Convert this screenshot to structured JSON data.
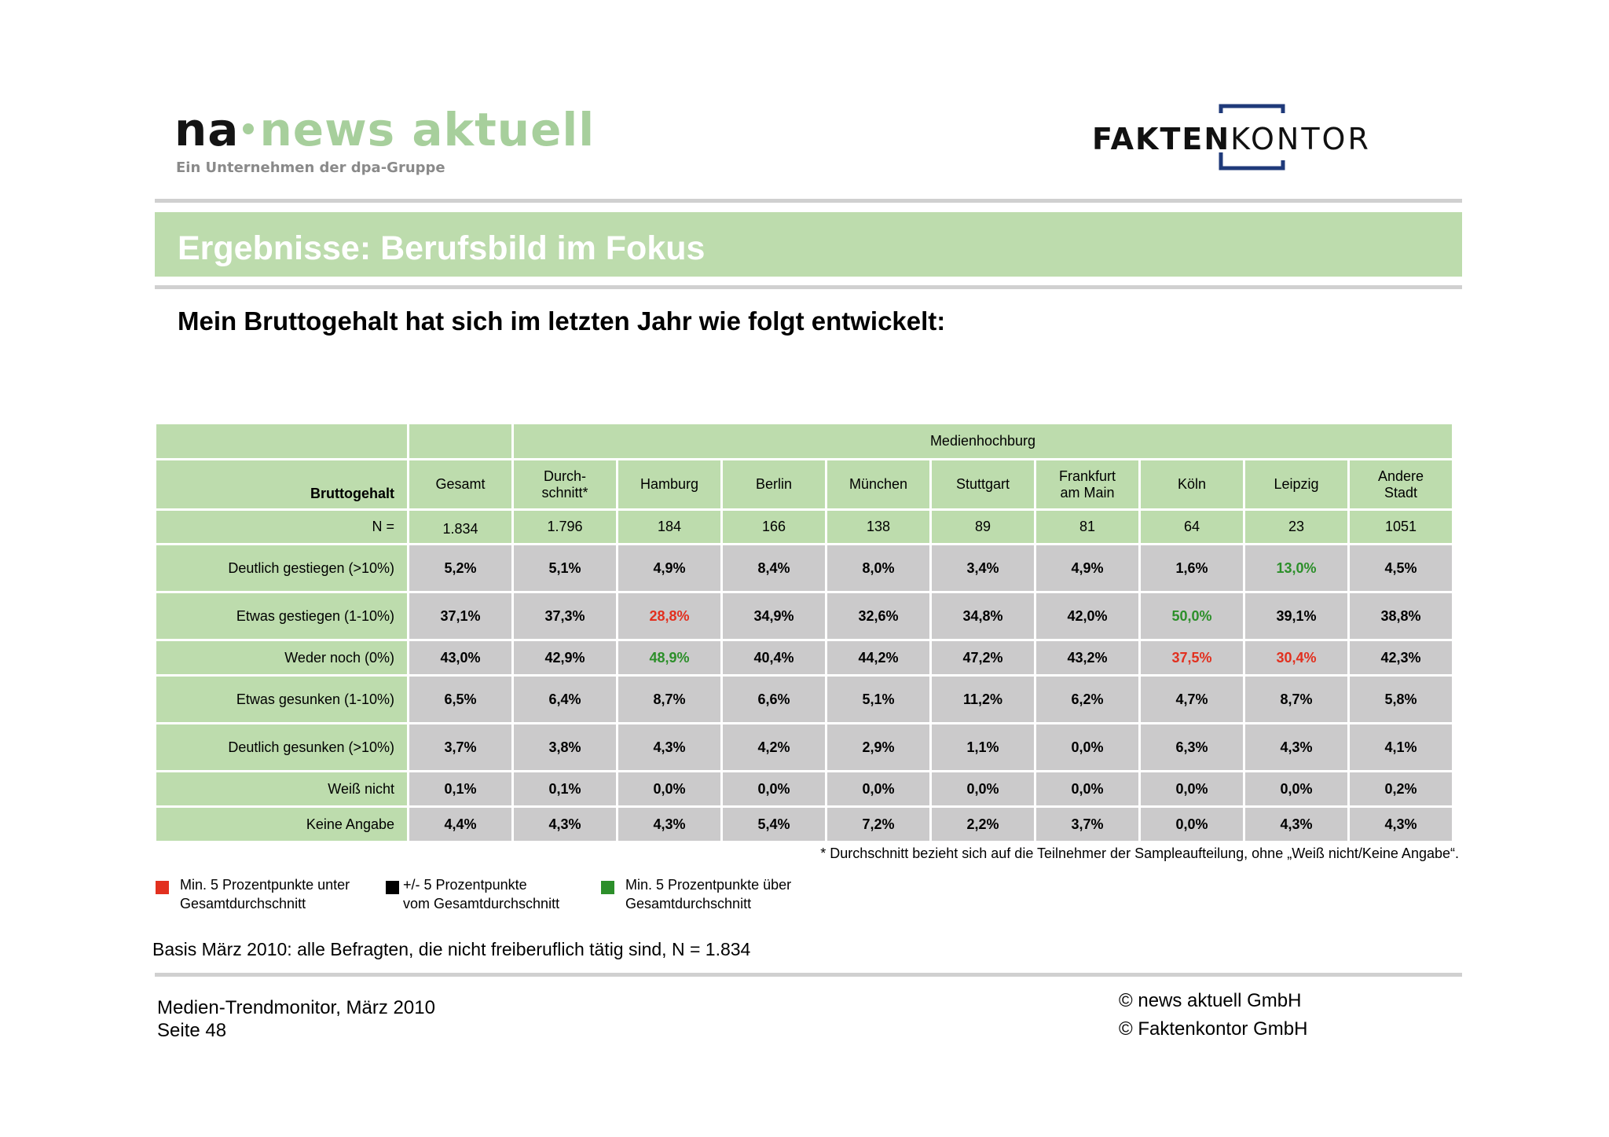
{
  "logo_left": {
    "part_na": "na",
    "part_brand": "news aktuell",
    "tagline": "Ein Unternehmen der dpa-Gruppe",
    "colors": {
      "brand": "#a7cf9c",
      "dark": "#141414",
      "tagline": "#8a8a8a"
    }
  },
  "logo_right": {
    "part_bold": "FAKTEN",
    "part_light": "KONTOR",
    "colors": {
      "text": "#111111",
      "bracket": "#1f3a7a"
    }
  },
  "title": "Ergebnisse: Berufsbild im Fokus",
  "subtitle": "Mein Bruttogehalt hat sich im letzten Jahr wie folgt entwickelt:",
  "table": {
    "group_header": "Medienhochburg",
    "row_header": "Bruttogehalt",
    "columns": [
      {
        "line1": "Gesamt",
        "line2": ""
      },
      {
        "line1": "Durch-",
        "line2": "schnitt*"
      },
      {
        "line1": "Hamburg",
        "line2": ""
      },
      {
        "line1": "Berlin",
        "line2": ""
      },
      {
        "line1": "München",
        "line2": ""
      },
      {
        "line1": "Stuttgart",
        "line2": ""
      },
      {
        "line1": "Frankfurt",
        "line2": "am Main"
      },
      {
        "line1": "Köln",
        "line2": ""
      },
      {
        "line1": "Leipzig",
        "line2": ""
      },
      {
        "line1": "Andere",
        "line2": "Stadt"
      }
    ],
    "n_label": "N =",
    "n_values": [
      "1.834",
      "1.796",
      "184",
      "166",
      "138",
      "89",
      "81",
      "64",
      "23",
      "1051"
    ],
    "rows": [
      {
        "label": "Deutlich gestiegen (>10%)",
        "values": [
          "5,2%",
          "5,1%",
          "4,9%",
          "8,4%",
          "8,0%",
          "3,4%",
          "4,9%",
          "1,6%",
          "13,0%",
          "4,5%"
        ],
        "highlight": [
          "",
          "",
          "",
          "",
          "",
          "",
          "",
          "",
          "green",
          ""
        ]
      },
      {
        "label": "Etwas gestiegen (1-10%)",
        "values": [
          "37,1%",
          "37,3%",
          "28,8%",
          "34,9%",
          "32,6%",
          "34,8%",
          "42,0%",
          "50,0%",
          "39,1%",
          "38,8%"
        ],
        "highlight": [
          "",
          "",
          "red",
          "",
          "",
          "",
          "",
          "green",
          "",
          ""
        ]
      },
      {
        "label": "Weder noch (0%)",
        "values": [
          "43,0%",
          "42,9%",
          "48,9%",
          "40,4%",
          "44,2%",
          "47,2%",
          "43,2%",
          "37,5%",
          "30,4%",
          "42,3%"
        ],
        "highlight": [
          "",
          "",
          "green",
          "",
          "",
          "",
          "",
          "red",
          "red",
          ""
        ]
      },
      {
        "label": "Etwas gesunken (1-10%)",
        "values": [
          "6,5%",
          "6,4%",
          "8,7%",
          "6,6%",
          "5,1%",
          "11,2%",
          "6,2%",
          "4,7%",
          "8,7%",
          "5,8%"
        ],
        "highlight": [
          "",
          "",
          "",
          "",
          "",
          "",
          "",
          "",
          "",
          ""
        ]
      },
      {
        "label": "Deutlich gesunken (>10%)",
        "values": [
          "3,7%",
          "3,8%",
          "4,3%",
          "4,2%",
          "2,9%",
          "1,1%",
          "0,0%",
          "6,3%",
          "4,3%",
          "4,1%"
        ],
        "highlight": [
          "",
          "",
          "",
          "",
          "",
          "",
          "",
          "",
          "",
          ""
        ]
      },
      {
        "label": "Weiß nicht",
        "values": [
          "0,1%",
          "0,1%",
          "0,0%",
          "0,0%",
          "0,0%",
          "0,0%",
          "0,0%",
          "0,0%",
          "0,0%",
          "0,2%"
        ],
        "highlight": [
          "",
          "",
          "",
          "",
          "",
          "",
          "",
          "",
          "",
          ""
        ]
      },
      {
        "label": "Keine Angabe",
        "values": [
          "4,4%",
          "4,3%",
          "4,3%",
          "5,4%",
          "7,2%",
          "2,2%",
          "3,7%",
          "0,0%",
          "4,3%",
          "4,3%"
        ],
        "highlight": [
          "",
          "",
          "",
          "",
          "",
          "",
          "",
          "",
          "",
          ""
        ]
      }
    ]
  },
  "footnote": "* Durchschnitt bezieht sich auf die Teilnehmer der Sampleaufteilung, ohne „Weiß nicht/Keine Angabe“.",
  "legend": [
    {
      "line1": "Min. 5 Prozentpunkte unter",
      "line2": "Gesamtdurchschnitt",
      "color": "#e2301f"
    },
    {
      "line1": "+/- 5 Prozentpunkte",
      "line2": "vom Gesamtdurchschnitt",
      "color": "#000000"
    },
    {
      "line1": "Min. 5 Prozentpunkte über",
      "line2": "Gesamtdurchschnitt",
      "color": "#2c8f2a"
    }
  ],
  "basis": "Basis März 2010: alle Befragten, die nicht freiberuflich tätig sind, N = 1.834",
  "footer": {
    "report": "Medien-Trendmonitor, März 2010",
    "page": "Seite 48",
    "copyright1": "© news aktuell GmbH",
    "copyright2": "© Faktenkontor GmbH"
  },
  "colors": {
    "header_green": "#bddcad",
    "cell_grey": "#cbcacb",
    "rule_grey": "#d0d0d0"
  }
}
